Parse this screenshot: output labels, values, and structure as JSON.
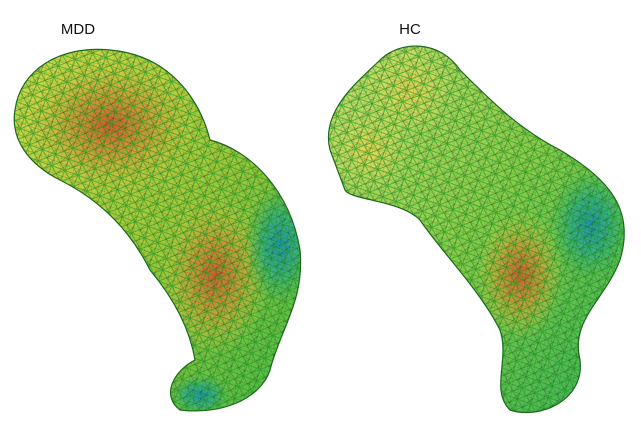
{
  "panels": [
    {
      "label": "MDD"
    },
    {
      "label": "HC"
    }
  ]
}
